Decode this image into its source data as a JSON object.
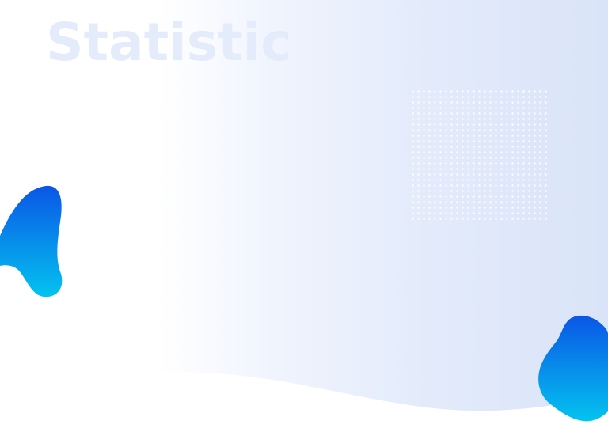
{
  "slide": {
    "title": "Statistic"
  },
  "colors": {
    "title_text": "#e4ebfa",
    "background_start": "#ffffff",
    "background_end": "#dae4f8",
    "blob_top": "#0a56e6",
    "blob_bottom": "#04c3ef"
  },
  "decorations": {
    "dot_grid": "dot-pattern",
    "wave": "white-wave-shape",
    "blobs": [
      "blue-gradient-blob",
      "blue-gradient-blob"
    ]
  }
}
